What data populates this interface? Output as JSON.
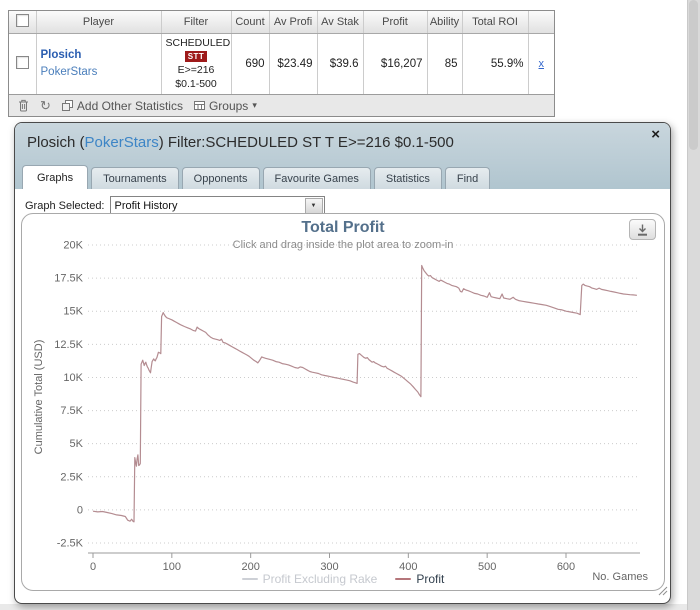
{
  "icons": {
    "close": "×",
    "caret": "▾",
    "select_arrow": "▼",
    "refresh": "↻"
  },
  "colors": {
    "profit_line": "#b48c91",
    "legend_profit_dash": "#b5767b",
    "popup_header": "#bccdd6",
    "badge_red": "#9e1a1a",
    "link_blue": "#3d85c6",
    "chart_title_blue": "#54708b"
  },
  "stats_table": {
    "columns": [
      "",
      "Player",
      "Filter",
      "Count",
      "Av Profi",
      "Av Stak",
      "Profit",
      "Ability",
      "Total ROI",
      ""
    ],
    "row": {
      "player_name": "Plosich",
      "player_site": "PokerStars",
      "filter_line1": "SCHEDULED",
      "filter_badge": "STT",
      "filter_line2": "E>=216",
      "filter_line3": "$0.1-500",
      "count": "690",
      "av_profit": "$23.49",
      "av_stake": "$39.6",
      "profit": "$16,207",
      "ability": "85",
      "total_roi": "55.9%",
      "remove_link": "x"
    },
    "toolbar": {
      "add_other_statistics": "Add Other Statistics",
      "groups": "Groups"
    }
  },
  "popup": {
    "title_prefix": "Plosich (",
    "title_site": "PokerStars",
    "title_suffix": ") Filter:SCHEDULED ST T E>=216 $0.1-500",
    "tabs": [
      "Graphs",
      "Tournaments",
      "Opponents",
      "Favourite Games",
      "Statistics",
      "Find"
    ],
    "active_tab": "Graphs",
    "graph_selected_label": "Graph Selected:",
    "graph_selected_value": "Profit History"
  },
  "chart_data": {
    "type": "line",
    "title": "Total Profit",
    "subtitle": "Click and drag inside the plot area to zoom-in",
    "ylabel": "Cumulative Total (USD)",
    "xlabel": "No. Games",
    "grid": "dotted-horizontal",
    "legend_position": "bottom-center",
    "xlim": [
      0,
      700
    ],
    "ylim": [
      -2500,
      20000
    ],
    "x_ticks": [
      0,
      100,
      200,
      300,
      400,
      500,
      600
    ],
    "y_ticks": [
      {
        "value": -2500,
        "label": "-2.5K"
      },
      {
        "value": 0,
        "label": "0"
      },
      {
        "value": 2500,
        "label": "2.5K"
      },
      {
        "value": 5000,
        "label": "5K"
      },
      {
        "value": 7500,
        "label": "7.5K"
      },
      {
        "value": 10000,
        "label": "10K"
      },
      {
        "value": 12500,
        "label": "12.5K"
      },
      {
        "value": 15000,
        "label": "15K"
      },
      {
        "value": 17500,
        "label": "17.5K"
      },
      {
        "value": 20000,
        "label": "20K"
      }
    ],
    "legend": [
      {
        "label": "Profit Excluding Rake",
        "dash_color": "#cdd0d6",
        "text_color": "#c6c9cf",
        "muted": true
      },
      {
        "label": "Profit",
        "dash_color": "#b5767b",
        "text_color": "#32404e",
        "muted": false
      }
    ],
    "series": [
      {
        "name": "Profit",
        "color": "#b48c91",
        "points": [
          [
            0,
            -100
          ],
          [
            6,
            -150
          ],
          [
            12,
            -120
          ],
          [
            18,
            -200
          ],
          [
            24,
            -280
          ],
          [
            30,
            -380
          ],
          [
            36,
            -420
          ],
          [
            41,
            -500
          ],
          [
            44,
            -780
          ],
          [
            47,
            -850
          ],
          [
            49,
            -700
          ],
          [
            51,
            -880
          ],
          [
            52,
            -900
          ],
          [
            53,
            3950
          ],
          [
            54,
            3600
          ],
          [
            55,
            3300
          ],
          [
            56,
            3850
          ],
          [
            57,
            4150
          ],
          [
            58,
            3350
          ],
          [
            59,
            3400
          ],
          [
            60,
            3500
          ],
          [
            61,
            11000
          ],
          [
            62,
            11150
          ],
          [
            63,
            11300
          ],
          [
            64,
            11100
          ],
          [
            65,
            10900
          ],
          [
            66,
            11050
          ],
          [
            67,
            11150
          ],
          [
            68,
            10950
          ],
          [
            69,
            10800
          ],
          [
            70,
            10700
          ],
          [
            71,
            10550
          ],
          [
            72,
            10450
          ],
          [
            73,
            10350
          ],
          [
            74,
            10800
          ],
          [
            75,
            11200
          ],
          [
            76,
            11300
          ],
          [
            77,
            11400
          ],
          [
            78,
            11300
          ],
          [
            79,
            11250
          ],
          [
            80,
            11400
          ],
          [
            81,
            11500
          ],
          [
            83,
            11900
          ],
          [
            85,
            11850
          ],
          [
            86,
            11800
          ],
          [
            87,
            14600
          ],
          [
            88,
            14750
          ],
          [
            89,
            14900
          ],
          [
            90,
            14800
          ],
          [
            92,
            14600
          ],
          [
            94,
            14500
          ],
          [
            96,
            14450
          ],
          [
            98,
            14400
          ],
          [
            100,
            14350
          ],
          [
            103,
            14250
          ],
          [
            106,
            14150
          ],
          [
            109,
            14050
          ],
          [
            112,
            13950
          ],
          [
            116,
            13850
          ],
          [
            120,
            13750
          ],
          [
            124,
            13650
          ],
          [
            127,
            13550
          ],
          [
            130,
            13500
          ],
          [
            132,
            13800
          ],
          [
            134,
            13700
          ],
          [
            137,
            13600
          ],
          [
            140,
            13500
          ],
          [
            143,
            13400
          ],
          [
            146,
            13200
          ],
          [
            149,
            13050
          ],
          [
            152,
            12950
          ],
          [
            155,
            12900
          ],
          [
            158,
            12850
          ],
          [
            161,
            12800
          ],
          [
            163,
            12900
          ],
          [
            165,
            12650
          ],
          [
            168,
            12600
          ],
          [
            171,
            12500
          ],
          [
            174,
            12400
          ],
          [
            177,
            12300
          ],
          [
            180,
            12200
          ],
          [
            183,
            12100
          ],
          [
            186,
            12000
          ],
          [
            189,
            11900
          ],
          [
            192,
            11800
          ],
          [
            195,
            11700
          ],
          [
            198,
            11600
          ],
          [
            201,
            11450
          ],
          [
            204,
            11300
          ],
          [
            207,
            11200
          ],
          [
            209,
            11100
          ],
          [
            211,
            11250
          ],
          [
            214,
            11550
          ],
          [
            216,
            11500
          ],
          [
            219,
            11450
          ],
          [
            222,
            11400
          ],
          [
            225,
            11350
          ],
          [
            228,
            11300
          ],
          [
            232,
            11200
          ],
          [
            236,
            11150
          ],
          [
            240,
            11050
          ],
          [
            244,
            11000
          ],
          [
            248,
            10950
          ],
          [
            252,
            10850
          ],
          [
            256,
            10750
          ],
          [
            260,
            10700
          ],
          [
            263,
            10800
          ],
          [
            266,
            10750
          ],
          [
            269,
            10650
          ],
          [
            272,
            10550
          ],
          [
            275,
            10450
          ],
          [
            278,
            10400
          ],
          [
            282,
            10350
          ],
          [
            286,
            10300
          ],
          [
            290,
            10200
          ],
          [
            294,
            10150
          ],
          [
            298,
            10100
          ],
          [
            302,
            10050
          ],
          [
            306,
            10000
          ],
          [
            310,
            9950
          ],
          [
            314,
            9900
          ],
          [
            318,
            9850
          ],
          [
            322,
            9800
          ],
          [
            326,
            9750
          ],
          [
            330,
            9650
          ],
          [
            333,
            9600
          ],
          [
            335,
            9550
          ],
          [
            336,
            11750
          ],
          [
            338,
            11800
          ],
          [
            340,
            11700
          ],
          [
            342,
            11600
          ],
          [
            344,
            11500
          ],
          [
            346,
            11450
          ],
          [
            348,
            11500
          ],
          [
            350,
            11350
          ],
          [
            352,
            11250
          ],
          [
            354,
            11150
          ],
          [
            356,
            11200
          ],
          [
            358,
            11100
          ],
          [
            360,
            11050
          ],
          [
            363,
            10950
          ],
          [
            366,
            10850
          ],
          [
            369,
            10800
          ],
          [
            371,
            10850
          ],
          [
            373,
            10700
          ],
          [
            376,
            10600
          ],
          [
            379,
            10500
          ],
          [
            382,
            10400
          ],
          [
            385,
            10300
          ],
          [
            388,
            10200
          ],
          [
            391,
            10100
          ],
          [
            394,
            9950
          ],
          [
            397,
            9800
          ],
          [
            400,
            9650
          ],
          [
            403,
            9500
          ],
          [
            406,
            9300
          ],
          [
            409,
            9100
          ],
          [
            412,
            8900
          ],
          [
            414,
            8700
          ],
          [
            416,
            8550
          ],
          [
            417,
            18450
          ],
          [
            418,
            18300
          ],
          [
            420,
            18050
          ],
          [
            422,
            17900
          ],
          [
            424,
            17750
          ],
          [
            426,
            17650
          ],
          [
            428,
            17700
          ],
          [
            430,
            17550
          ],
          [
            433,
            17450
          ],
          [
            436,
            17350
          ],
          [
            439,
            17250
          ],
          [
            441,
            17350
          ],
          [
            443,
            17300
          ],
          [
            446,
            17200
          ],
          [
            449,
            17100
          ],
          [
            452,
            17050
          ],
          [
            455,
            16950
          ],
          [
            458,
            16900
          ],
          [
            461,
            16850
          ],
          [
            464,
            16750
          ],
          [
            466,
            16500
          ],
          [
            468,
            16450
          ],
          [
            470,
            16700
          ],
          [
            473,
            16600
          ],
          [
            476,
            16550
          ],
          [
            480,
            16450
          ],
          [
            484,
            16350
          ],
          [
            488,
            16300
          ],
          [
            492,
            16200
          ],
          [
            496,
            16150
          ],
          [
            500,
            16050
          ],
          [
            503,
            16400
          ],
          [
            505,
            16100
          ],
          [
            508,
            16050
          ],
          [
            512,
            16000
          ],
          [
            516,
            15950
          ],
          [
            519,
            16300
          ],
          [
            521,
            16000
          ],
          [
            525,
            15950
          ],
          [
            529,
            15900
          ],
          [
            533,
            16050
          ],
          [
            536,
            15900
          ],
          [
            540,
            15800
          ],
          [
            545,
            15750
          ],
          [
            550,
            15700
          ],
          [
            555,
            15650
          ],
          [
            560,
            15600
          ],
          [
            565,
            15550
          ],
          [
            570,
            15500
          ],
          [
            575,
            15450
          ],
          [
            580,
            15350
          ],
          [
            585,
            15250
          ],
          [
            590,
            15150
          ],
          [
            595,
            15100
          ],
          [
            600,
            15000
          ],
          [
            605,
            14950
          ],
          [
            610,
            14900
          ],
          [
            614,
            14850
          ],
          [
            618,
            14750
          ],
          [
            620,
            16950
          ],
          [
            622,
            17050
          ],
          [
            624,
            16950
          ],
          [
            627,
            16900
          ],
          [
            630,
            16850
          ],
          [
            633,
            16750
          ],
          [
            636,
            16700
          ],
          [
            639,
            16650
          ],
          [
            642,
            16750
          ],
          [
            645,
            16650
          ],
          [
            649,
            16600
          ],
          [
            653,
            16550
          ],
          [
            657,
            16500
          ],
          [
            661,
            16450
          ],
          [
            665,
            16400
          ],
          [
            669,
            16350
          ],
          [
            673,
            16300
          ],
          [
            677,
            16280
          ],
          [
            681,
            16250
          ],
          [
            685,
            16230
          ],
          [
            690,
            16200
          ]
        ]
      }
    ]
  }
}
